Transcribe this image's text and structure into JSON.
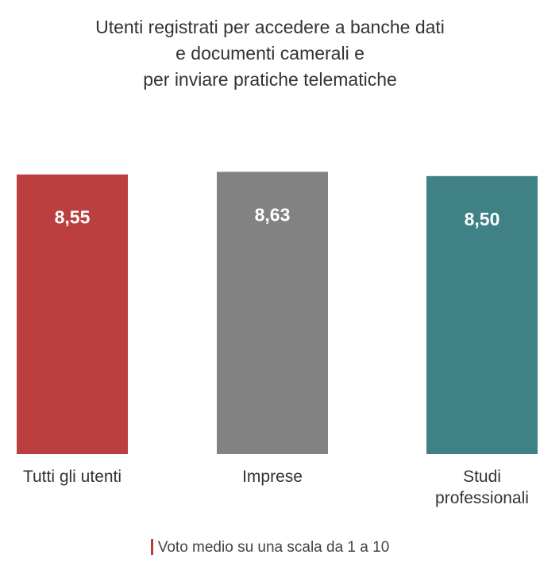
{
  "chart_data": {
    "type": "bar",
    "title_lines": [
      "Utenti registrati per accedere a banche dati",
      "e documenti camerali e",
      "per inviare pratiche telematiche"
    ],
    "categories": [
      [
        "Tutti gli utenti"
      ],
      [
        "Imprese"
      ],
      [
        "Studi",
        "professionali"
      ]
    ],
    "values": [
      8.55,
      8.63,
      8.5
    ],
    "value_labels": [
      "8,55",
      "8,63",
      "8,50"
    ],
    "colors": [
      "#bb3f3f",
      "#828282",
      "#3f8185"
    ],
    "ylim": [
      0,
      10
    ],
    "grid": false,
    "legend": "none",
    "footnote": "Voto medio su una scala da 1 a 10",
    "footnote_color": "#b83c3c"
  }
}
